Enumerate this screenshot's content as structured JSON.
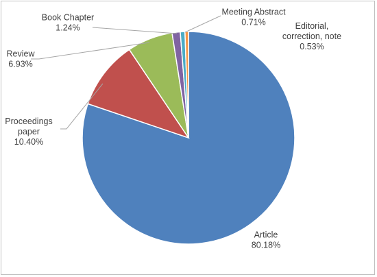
{
  "chart_data": {
    "type": "pie",
    "title": "",
    "start_angle_deg": 0,
    "direction": "clockwise",
    "slices": [
      {
        "label_lines": [
          "Article"
        ],
        "value_text": "80.18%",
        "value": 80.18,
        "color": "#4f81bd"
      },
      {
        "label_lines": [
          "Proceedings",
          "paper"
        ],
        "value_text": "10.40%",
        "value": 10.4,
        "color": "#c0504d"
      },
      {
        "label_lines": [
          "Review"
        ],
        "value_text": "6.93%",
        "value": 6.93,
        "color": "#9bbb59"
      },
      {
        "label_lines": [
          "Book Chapter"
        ],
        "value_text": "1.24%",
        "value": 1.24,
        "color": "#8064a2"
      },
      {
        "label_lines": [
          "Meeting Abstract"
        ],
        "value_text": "0.71%",
        "value": 0.71,
        "color": "#4bacc6"
      },
      {
        "label_lines": [
          "Editorial,",
          "correction, note"
        ],
        "value_text": "0.53%",
        "value": 0.53,
        "color": "#f79646"
      }
    ],
    "legend": "none",
    "leader_lines": true
  }
}
